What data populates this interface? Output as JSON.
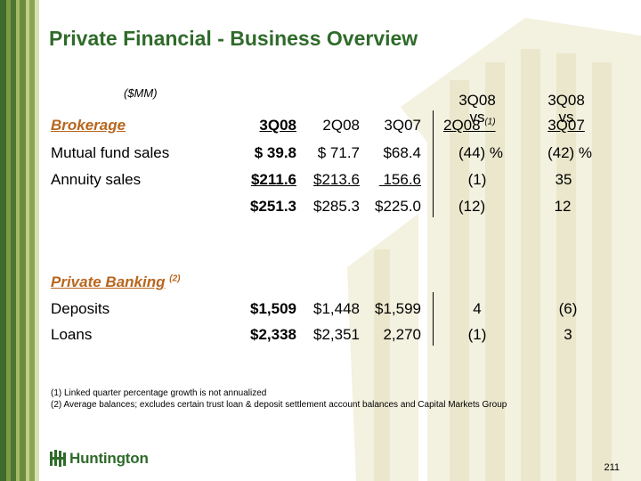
{
  "title": "Private Financial - Business Overview",
  "units_label": "($MM)",
  "header": {
    "col_vs1_line1": "3Q08",
    "col_vs1_line2": "vs",
    "col_vs2_line1": "3Q08",
    "col_vs2_line2": "vs",
    "col1": "3Q08",
    "col2": "2Q08",
    "col3": "3Q07",
    "col4": "2Q08",
    "col4_note": "(1)",
    "col5": "3Q07"
  },
  "brokerage": {
    "label": "Brokerage",
    "rows": [
      {
        "label": "Mutual fund sales",
        "v1": "$ 39.8",
        "v2": "$ 71.7",
        "v3": "$68.4",
        "v4": "(44) %",
        "v5": "(42) %"
      },
      {
        "label": "Annuity sales",
        "v1": "$211.6",
        "v2": "$213.6",
        "v3": " 156.6",
        "v4": "(1)",
        "v5": "35"
      },
      {
        "label": "",
        "v1": "$251.3",
        "v2": "$285.3",
        "v3": "$225.0",
        "v4": "(12)",
        "v5": "12"
      }
    ]
  },
  "private_banking": {
    "label": "Private Banking",
    "note": "(2)",
    "rows": [
      {
        "label": "Deposits",
        "v1": "$1,509",
        "v2": "$1,448",
        "v3": "$1,599",
        "v4": "4",
        "v5": "(6)"
      },
      {
        "label": "Loans",
        "v1": "$2,338",
        "v2": "$2,351",
        "v3": "2,270",
        "v4": "(1)",
        "v5": "3"
      }
    ]
  },
  "footnotes": [
    "(1)  Linked quarter percentage growth is not annualized",
    "(2)  Average balances; excludes certain trust loan & deposit settlement account balances and Capital Markets Group"
  ],
  "logo_text": "Huntington",
  "page_number": "211",
  "colors": {
    "title": "#2f6b2a",
    "section": "#b8661e",
    "stripe_dark": "#3f6b2a",
    "stripe_light": "#a9bb6a"
  }
}
